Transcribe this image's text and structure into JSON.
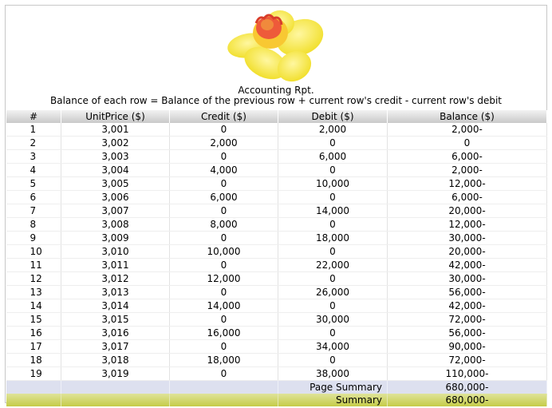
{
  "report": {
    "title": "Accounting Rpt.",
    "subtitle": "Balance of each row = Balance of the previous row + current row's credit - current row's debit"
  },
  "columns": [
    "#",
    "UnitPrice ($)",
    "Credit ($)",
    "Debit ($)",
    "Balance ($)"
  ],
  "rows": [
    [
      "1",
      "3,001",
      "0",
      "2,000",
      "2,000-"
    ],
    [
      "2",
      "3,002",
      "2,000",
      "0",
      "0"
    ],
    [
      "3",
      "3,003",
      "0",
      "6,000",
      "6,000-"
    ],
    [
      "4",
      "3,004",
      "4,000",
      "0",
      "2,000-"
    ],
    [
      "5",
      "3,005",
      "0",
      "10,000",
      "12,000-"
    ],
    [
      "6",
      "3,006",
      "6,000",
      "0",
      "6,000-"
    ],
    [
      "7",
      "3,007",
      "0",
      "14,000",
      "20,000-"
    ],
    [
      "8",
      "3,008",
      "8,000",
      "0",
      "12,000-"
    ],
    [
      "9",
      "3,009",
      "0",
      "18,000",
      "30,000-"
    ],
    [
      "10",
      "3,010",
      "10,000",
      "0",
      "20,000-"
    ],
    [
      "11",
      "3,011",
      "0",
      "22,000",
      "42,000-"
    ],
    [
      "12",
      "3,012",
      "12,000",
      "0",
      "30,000-"
    ],
    [
      "13",
      "3,013",
      "0",
      "26,000",
      "56,000-"
    ],
    [
      "14",
      "3,014",
      "14,000",
      "0",
      "42,000-"
    ],
    [
      "15",
      "3,015",
      "0",
      "30,000",
      "72,000-"
    ],
    [
      "16",
      "3,016",
      "16,000",
      "0",
      "56,000-"
    ],
    [
      "17",
      "3,017",
      "0",
      "34,000",
      "90,000-"
    ],
    [
      "18",
      "3,018",
      "18,000",
      "0",
      "72,000-"
    ],
    [
      "19",
      "3,019",
      "0",
      "38,000",
      "110,000-"
    ]
  ],
  "page_summary": {
    "label": "Page Summary",
    "value": "680,000-"
  },
  "summary": {
    "label": "Summary",
    "value": "680,000-"
  },
  "colors": {
    "header_bg": "#d4d4d4",
    "page_summary_bg": "#dde0ef",
    "summary_bg": "#cfd56a",
    "flower_petals": "#f5e43a",
    "flower_center": "#f05a3c"
  }
}
